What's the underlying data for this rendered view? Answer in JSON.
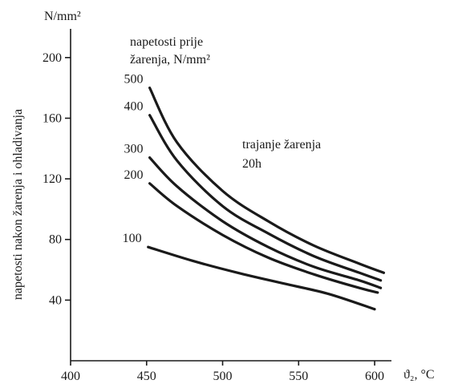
{
  "chart_data": {
    "type": "line",
    "x_label": "ϑ₂, °C",
    "y_unit": "N/mm²",
    "y_label": "napetosti nakon žarenja i ohladivanja",
    "legend_title_line1": "napetosti prije",
    "legend_title_line2": "žarenja, N/mm²",
    "annotation_line1": "trajanje žarenja",
    "annotation_line2": "20h",
    "xlim": [
      400,
      610
    ],
    "ylim": [
      0,
      220
    ],
    "x_ticks": [
      400,
      450,
      500,
      550,
      600
    ],
    "y_ticks": [
      40,
      80,
      120,
      160,
      200
    ],
    "grid": false,
    "series": [
      {
        "name": "500",
        "points": [
          [
            452,
            180
          ],
          [
            470,
            144
          ],
          [
            500,
            112
          ],
          [
            530,
            92
          ],
          [
            560,
            76
          ],
          [
            590,
            64
          ],
          [
            606,
            58
          ]
        ]
      },
      {
        "name": "400",
        "points": [
          [
            452,
            162
          ],
          [
            470,
            132
          ],
          [
            500,
            102
          ],
          [
            530,
            84
          ],
          [
            560,
            69
          ],
          [
            590,
            58
          ],
          [
            604,
            53
          ]
        ]
      },
      {
        "name": "300",
        "points": [
          [
            452,
            134
          ],
          [
            470,
            115
          ],
          [
            500,
            92
          ],
          [
            530,
            75
          ],
          [
            560,
            62
          ],
          [
            590,
            53
          ],
          [
            604,
            48
          ]
        ]
      },
      {
        "name": "200",
        "points": [
          [
            452,
            117
          ],
          [
            470,
            102
          ],
          [
            500,
            83
          ],
          [
            530,
            68
          ],
          [
            560,
            57
          ],
          [
            590,
            48
          ],
          [
            602,
            45
          ]
        ]
      },
      {
        "name": "100",
        "points": [
          [
            451,
            75
          ],
          [
            480,
            66
          ],
          [
            510,
            58
          ],
          [
            540,
            51
          ],
          [
            570,
            44
          ],
          [
            600,
            34
          ]
        ]
      }
    ]
  }
}
